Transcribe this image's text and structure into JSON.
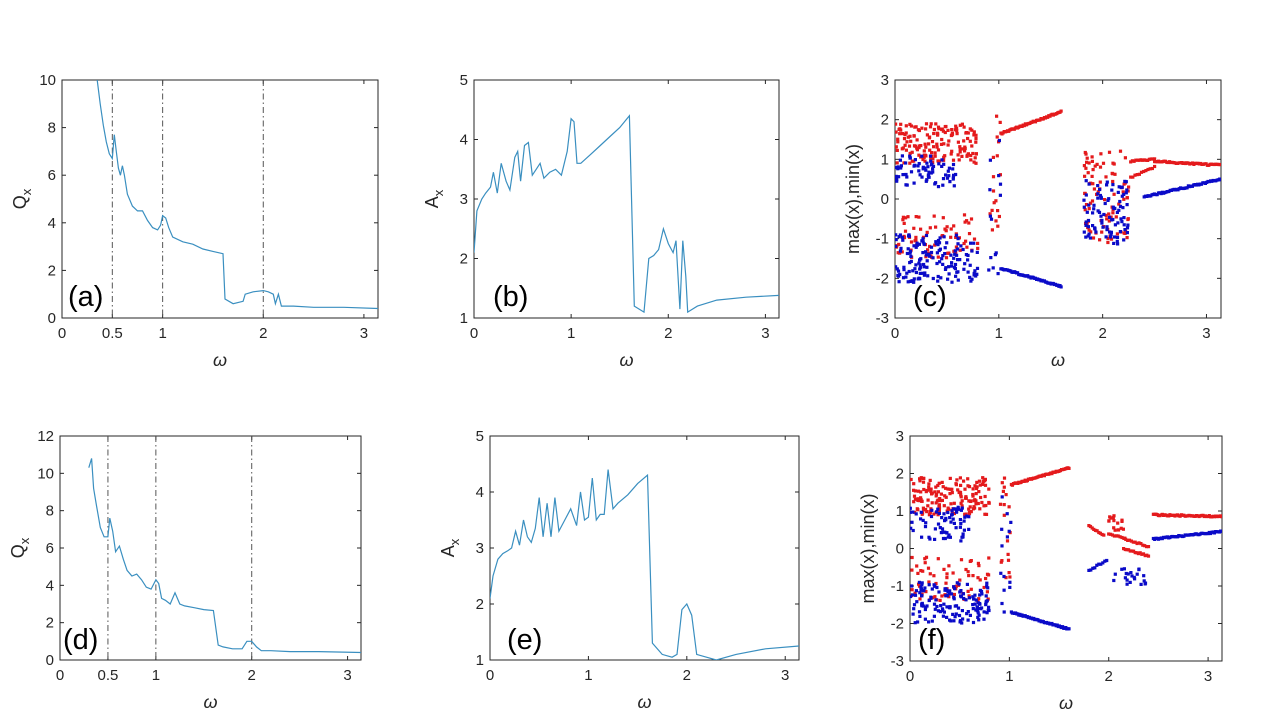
{
  "colors": {
    "line": "#3a8fc0",
    "max": "#e41a1c",
    "min": "#0a0ac8",
    "axis": "#262626",
    "vline": "#555555"
  },
  "chart_data": [
    {
      "panel_label": "(a)",
      "type": "line",
      "xlabel": "ω",
      "ylabel_main": "Q",
      "ylabel_sub": "x",
      "xlim": [
        0,
        3.14
      ],
      "ylim": [
        0,
        10
      ],
      "xticks": [
        0,
        0.5,
        1,
        2,
        3
      ],
      "xtick_labels": [
        "0",
        "0.5",
        "1",
        "2",
        "3"
      ],
      "yticks": [
        0,
        2,
        4,
        6,
        8,
        10
      ],
      "ytick_labels": [
        "0",
        "2",
        "4",
        "6",
        "8",
        "10"
      ],
      "vlines": [
        0.5,
        1,
        2
      ],
      "x": [
        0.35,
        0.38,
        0.41,
        0.44,
        0.47,
        0.5,
        0.52,
        0.54,
        0.56,
        0.58,
        0.6,
        0.62,
        0.65,
        0.7,
        0.75,
        0.8,
        0.85,
        0.9,
        0.95,
        0.98,
        1.0,
        1.03,
        1.06,
        1.1,
        1.2,
        1.3,
        1.4,
        1.5,
        1.6,
        1.62,
        1.7,
        1.8,
        1.82,
        1.9,
        2.0,
        2.05,
        2.1,
        2.12,
        2.15,
        2.18,
        2.2,
        2.3,
        2.5,
        2.8,
        3.14
      ],
      "y": [
        10.0,
        9.0,
        8.1,
        7.4,
        6.9,
        6.7,
        7.7,
        7.0,
        6.3,
        6.0,
        6.4,
        6.0,
        5.2,
        4.7,
        4.5,
        4.5,
        4.1,
        3.8,
        3.7,
        3.9,
        4.3,
        4.2,
        3.8,
        3.4,
        3.2,
        3.1,
        2.9,
        2.8,
        2.7,
        0.8,
        0.6,
        0.7,
        1.0,
        1.1,
        1.15,
        1.1,
        1.0,
        0.6,
        1.0,
        0.5,
        0.5,
        0.5,
        0.45,
        0.45,
        0.4
      ]
    },
    {
      "panel_label": "(b)",
      "type": "line",
      "xlabel": "ω",
      "ylabel_main": "A",
      "ylabel_sub": "x",
      "xlim": [
        0,
        3.14
      ],
      "ylim": [
        1,
        5
      ],
      "xticks": [
        0,
        1,
        2,
        3
      ],
      "xtick_labels": [
        "0",
        "1",
        "2",
        "3"
      ],
      "yticks": [
        1,
        2,
        3,
        4,
        5
      ],
      "ytick_labels": [
        "1",
        "2",
        "3",
        "4",
        "5"
      ],
      "vlines": [],
      "x": [
        0,
        0.03,
        0.08,
        0.12,
        0.17,
        0.2,
        0.24,
        0.28,
        0.33,
        0.37,
        0.42,
        0.45,
        0.48,
        0.52,
        0.56,
        0.6,
        0.64,
        0.68,
        0.72,
        0.78,
        0.84,
        0.9,
        0.96,
        1.0,
        1.03,
        1.06,
        1.1,
        1.2,
        1.3,
        1.4,
        1.5,
        1.6,
        1.65,
        1.75,
        1.8,
        1.85,
        1.9,
        1.95,
        2.0,
        2.05,
        2.08,
        2.12,
        2.15,
        2.18,
        2.2,
        2.3,
        2.5,
        2.8,
        3.14
      ],
      "y": [
        2.1,
        2.8,
        3.0,
        3.1,
        3.2,
        3.45,
        3.1,
        3.6,
        3.3,
        3.15,
        3.7,
        3.8,
        3.3,
        3.9,
        3.95,
        3.4,
        3.5,
        3.6,
        3.35,
        3.45,
        3.5,
        3.4,
        3.8,
        4.35,
        4.3,
        3.6,
        3.6,
        3.75,
        3.9,
        4.05,
        4.2,
        4.4,
        1.2,
        1.1,
        2.0,
        2.05,
        2.15,
        2.5,
        2.25,
        2.1,
        2.3,
        1.15,
        2.3,
        1.7,
        1.1,
        1.2,
        1.3,
        1.35,
        1.38
      ]
    },
    {
      "panel_label": "(c)",
      "type": "scatter",
      "xlabel": "ω",
      "ylabel_main": "max(x),min(x)",
      "ylabel_sub": "",
      "xlim": [
        0,
        3.14
      ],
      "ylim": [
        -3,
        3
      ],
      "xticks": [
        0,
        1,
        2,
        3
      ],
      "xtick_labels": [
        "0",
        "1",
        "2",
        "3"
      ],
      "yticks": [
        -3,
        -2,
        -1,
        0,
        1,
        2,
        3
      ],
      "ytick_labels": [
        "-3",
        "-2",
        "-1",
        "0",
        "1",
        "2",
        "3"
      ],
      "seed": 7,
      "gap": [
        2.27,
        2.5
      ],
      "series": [
        {
          "name": "max(x)",
          "clouds": [
            {
              "x": [
                0.0,
                0.8
              ],
              "y": [
                0.9,
                1.9
              ],
              "n": 160
            },
            {
              "x": [
                0.0,
                0.8
              ],
              "y": [
                -1.5,
                -0.4
              ],
              "n": 75
            },
            {
              "x": [
                0.9,
                1.02
              ],
              "y": [
                -1.0,
                2.1
              ],
              "n": 18
            },
            {
              "x": [
                1.82,
                2.25
              ],
              "y": [
                -1.1,
                1.25
              ],
              "n": 90
            }
          ],
          "branches": [
            {
              "x": [
                1.02,
                1.6
              ],
              "y": [
                1.65,
                2.2
              ],
              "n": 55
            },
            {
              "x": [
                2.5,
                3.14
              ],
              "y": [
                0.95,
                0.85
              ],
              "n": 50
            },
            {
              "x": [
                2.27,
                2.5
              ],
              "y": [
                0.95,
                1.0
              ],
              "n": 15
            },
            {
              "x": [
                2.27,
                2.5
              ],
              "y": [
                0.55,
                0.8
              ],
              "n": 12
            }
          ]
        },
        {
          "name": "min(x)",
          "clouds": [
            {
              "x": [
                0.0,
                0.8
              ],
              "y": [
                -2.1,
                -0.9
              ],
              "n": 150
            },
            {
              "x": [
                0.0,
                0.6
              ],
              "y": [
                0.3,
                1.1
              ],
              "n": 75
            },
            {
              "x": [
                0.9,
                1.02
              ],
              "y": [
                -2.0,
                1.6
              ],
              "n": 14
            },
            {
              "x": [
                1.82,
                2.25
              ],
              "y": [
                -1.2,
                0.6
              ],
              "n": 90
            }
          ],
          "branches": [
            {
              "x": [
                1.02,
                1.6
              ],
              "y": [
                -1.75,
                -2.2
              ],
              "n": 55
            },
            {
              "x": [
                2.4,
                3.14
              ],
              "y": [
                0.05,
                0.5
              ],
              "n": 60
            }
          ]
        }
      ]
    },
    {
      "panel_label": "(d)",
      "type": "line",
      "xlabel": "ω",
      "ylabel_main": "Q",
      "ylabel_sub": "x",
      "xlim": [
        0,
        3.14
      ],
      "ylim": [
        0,
        12
      ],
      "xticks": [
        0,
        0.5,
        1,
        2,
        3
      ],
      "xtick_labels": [
        "0",
        "0.5",
        "1",
        "2",
        "3"
      ],
      "yticks": [
        0,
        2,
        4,
        6,
        8,
        10,
        12
      ],
      "ytick_labels": [
        "0",
        "2",
        "4",
        "6",
        "8",
        "10",
        "12"
      ],
      "vlines": [
        0.5,
        1,
        2
      ],
      "x": [
        0.3,
        0.33,
        0.35,
        0.38,
        0.42,
        0.46,
        0.5,
        0.52,
        0.55,
        0.58,
        0.62,
        0.66,
        0.7,
        0.75,
        0.8,
        0.85,
        0.9,
        0.95,
        1.0,
        1.03,
        1.06,
        1.1,
        1.15,
        1.2,
        1.25,
        1.3,
        1.4,
        1.5,
        1.6,
        1.65,
        1.7,
        1.8,
        1.9,
        1.95,
        2.0,
        2.05,
        2.1,
        2.2,
        2.4,
        2.7,
        3.14
      ],
      "y": [
        10.3,
        10.8,
        9.2,
        8.3,
        7.1,
        6.6,
        6.6,
        7.6,
        6.9,
        5.8,
        6.1,
        5.4,
        4.8,
        4.5,
        4.6,
        4.3,
        3.9,
        3.8,
        4.3,
        4.1,
        3.3,
        3.2,
        3.0,
        3.6,
        3.0,
        2.9,
        2.8,
        2.7,
        2.65,
        0.8,
        0.7,
        0.6,
        0.6,
        1.0,
        1.0,
        0.7,
        0.5,
        0.5,
        0.45,
        0.45,
        0.4
      ]
    },
    {
      "panel_label": "(e)",
      "type": "line",
      "xlabel": "ω",
      "ylabel_main": "A",
      "ylabel_sub": "x",
      "xlim": [
        0,
        3.14
      ],
      "ylim": [
        1,
        5
      ],
      "xticks": [
        0,
        1,
        2,
        3
      ],
      "xtick_labels": [
        "0",
        "1",
        "2",
        "3"
      ],
      "yticks": [
        1,
        2,
        3,
        4,
        5
      ],
      "ytick_labels": [
        "1",
        "2",
        "3",
        "4",
        "5"
      ],
      "vlines": [],
      "x": [
        0,
        0.03,
        0.08,
        0.13,
        0.18,
        0.22,
        0.26,
        0.3,
        0.34,
        0.38,
        0.42,
        0.46,
        0.5,
        0.54,
        0.58,
        0.62,
        0.66,
        0.7,
        0.76,
        0.82,
        0.88,
        0.92,
        0.96,
        1.0,
        1.04,
        1.08,
        1.12,
        1.16,
        1.2,
        1.25,
        1.3,
        1.4,
        1.5,
        1.6,
        1.65,
        1.75,
        1.85,
        1.9,
        1.95,
        2.0,
        2.05,
        2.1,
        2.2,
        2.3,
        2.5,
        2.8,
        3.14
      ],
      "y": [
        2.1,
        2.5,
        2.8,
        2.9,
        2.95,
        3.0,
        3.3,
        3.05,
        3.5,
        3.2,
        3.1,
        3.35,
        3.9,
        3.2,
        3.8,
        3.2,
        3.9,
        3.3,
        3.5,
        3.7,
        3.4,
        4.0,
        3.5,
        3.55,
        4.25,
        3.5,
        3.6,
        3.6,
        4.4,
        3.7,
        3.8,
        3.95,
        4.15,
        4.3,
        1.3,
        1.1,
        1.05,
        1.1,
        1.9,
        2.0,
        1.8,
        1.1,
        1.05,
        1.0,
        1.1,
        1.2,
        1.25
      ]
    },
    {
      "panel_label": "(f)",
      "type": "scatter",
      "xlabel": "ω",
      "ylabel_main": "max(x),min(x)",
      "ylabel_sub": "",
      "xlim": [
        0,
        3.14
      ],
      "ylim": [
        -3,
        3
      ],
      "xticks": [
        0,
        1,
        2,
        3
      ],
      "xtick_labels": [
        "0",
        "1",
        "2",
        "3"
      ],
      "yticks": [
        -3,
        -2,
        -1,
        0,
        1,
        2,
        3
      ],
      "ytick_labels": [
        "-3",
        "-2",
        "-1",
        "0",
        "1",
        "2",
        "3"
      ],
      "seed": 19,
      "gap": [
        2.4,
        2.45
      ],
      "series": [
        {
          "name": "max(x)",
          "clouds": [
            {
              "x": [
                0.0,
                0.8
              ],
              "y": [
                0.9,
                1.9
              ],
              "n": 160
            },
            {
              "x": [
                0.0,
                0.8
              ],
              "y": [
                -1.4,
                -0.2
              ],
              "n": 70
            },
            {
              "x": [
                0.9,
                1.02
              ],
              "y": [
                -0.9,
                2.2
              ],
              "n": 18
            },
            {
              "x": [
                2.0,
                2.2
              ],
              "y": [
                0.2,
                0.9
              ],
              "n": 18
            }
          ],
          "branches": [
            {
              "x": [
                1.02,
                1.6
              ],
              "y": [
                1.7,
                2.15
              ],
              "n": 55
            },
            {
              "x": [
                2.45,
                3.14
              ],
              "y": [
                0.9,
                0.85
              ],
              "n": 55
            },
            {
              "x": [
                1.8,
                1.95
              ],
              "y": [
                0.6,
                0.35
              ],
              "n": 10
            },
            {
              "x": [
                2.15,
                2.4
              ],
              "y": [
                0.0,
                -0.2
              ],
              "n": 16
            },
            {
              "x": [
                2.0,
                2.4
              ],
              "y": [
                0.4,
                0.05
              ],
              "n": 22
            }
          ]
        },
        {
          "name": "min(x)",
          "clouds": [
            {
              "x": [
                0.0,
                0.8
              ],
              "y": [
                -2.0,
                -0.9
              ],
              "n": 150
            },
            {
              "x": [
                0.0,
                0.6
              ],
              "y": [
                0.2,
                1.1
              ],
              "n": 70
            },
            {
              "x": [
                0.9,
                1.02
              ],
              "y": [
                -2.0,
                1.5
              ],
              "n": 14
            },
            {
              "x": [
                2.05,
                2.4
              ],
              "y": [
                -1.0,
                -0.5
              ],
              "n": 22
            }
          ],
          "branches": [
            {
              "x": [
                1.02,
                1.6
              ],
              "y": [
                -1.7,
                -2.15
              ],
              "n": 55
            },
            {
              "x": [
                1.8,
                1.98
              ],
              "y": [
                -0.6,
                -0.3
              ],
              "n": 10
            },
            {
              "x": [
                2.45,
                3.14
              ],
              "y": [
                0.25,
                0.45
              ],
              "n": 55
            }
          ]
        }
      ]
    }
  ]
}
